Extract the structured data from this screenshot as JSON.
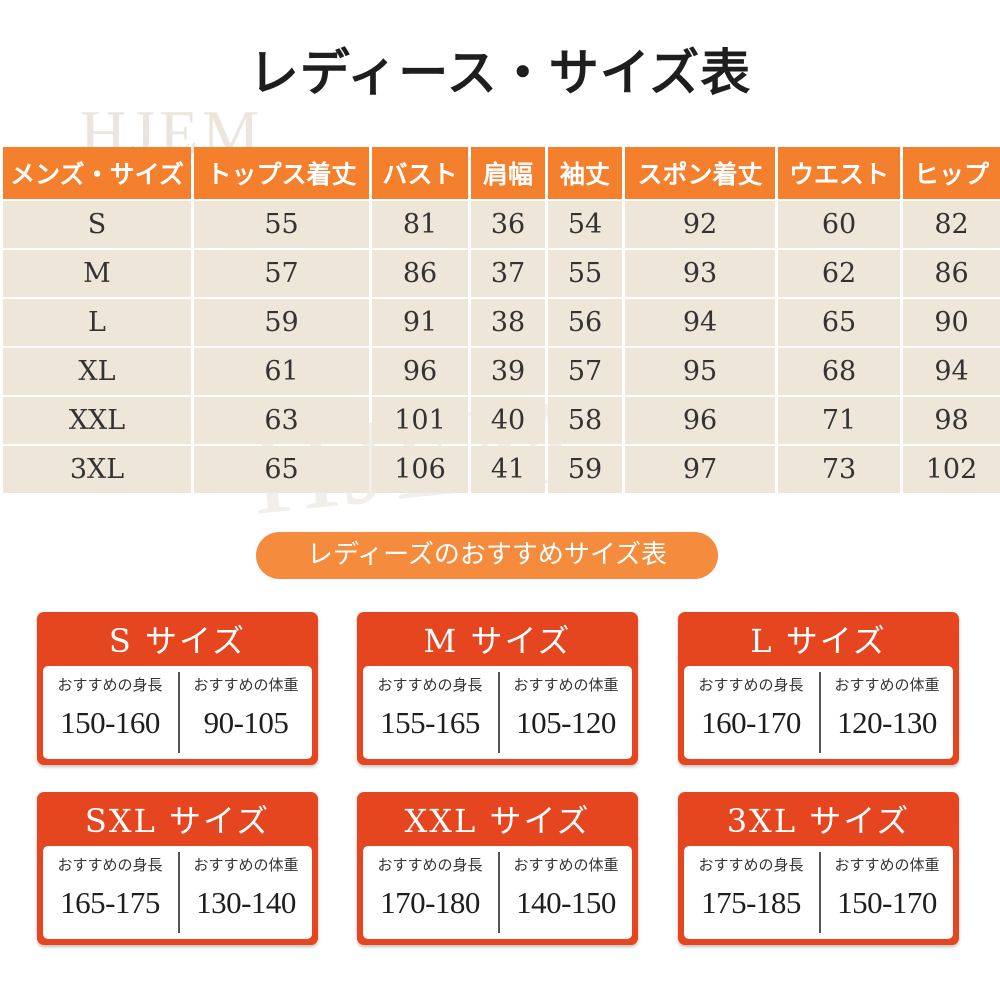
{
  "title": "レディース・サイズ表",
  "watermark": "HJEM",
  "table": {
    "headers": [
      "メンズ・サイズ",
      "トップス着丈",
      "バスト",
      "肩幅",
      "袖丈",
      "スポン着丈",
      "ウエスト",
      "ヒップ"
    ],
    "rows": [
      [
        "S",
        "55",
        "81",
        "36",
        "54",
        "92",
        "60",
        "82"
      ],
      [
        "M",
        "57",
        "86",
        "37",
        "55",
        "93",
        "62",
        "86"
      ],
      [
        "L",
        "59",
        "91",
        "38",
        "56",
        "94",
        "65",
        "90"
      ],
      [
        "XL",
        "61",
        "96",
        "39",
        "57",
        "95",
        "68",
        "94"
      ],
      [
        "XXL",
        "63",
        "101",
        "40",
        "58",
        "96",
        "71",
        "98"
      ],
      [
        "3XL",
        "65",
        "106",
        "41",
        "59",
        "97",
        "73",
        "102"
      ]
    ]
  },
  "recommend_title": "レディーズのおすすめサイズ表",
  "colors": {
    "header_orange": "#f47f2c",
    "cell_beige": "#efe6da",
    "card_red": "#e5451f",
    "pill_orange": "#f48b3d"
  },
  "cards": [
    {
      "title": "S サイズ",
      "height_label": "おすすめの身長",
      "height": "150-160",
      "weight_label": "おすすめの体重",
      "weight": "90-105"
    },
    {
      "title": "M サイズ",
      "height_label": "おすすめの身長",
      "height": "155-165",
      "weight_label": "おすすめの体重",
      "weight": "105-120"
    },
    {
      "title": "L サイズ",
      "height_label": "おすすめの身長",
      "height": "160-170",
      "weight_label": "おすすめの体重",
      "weight": "120-130"
    },
    {
      "title": "SXL サイズ",
      "height_label": "おすすめの身長",
      "height": "165-175",
      "weight_label": "おすすめの体重",
      "weight": "130-140"
    },
    {
      "title": "XXL サイズ",
      "height_label": "おすすめの身長",
      "height": "170-180",
      "weight_label": "おすすめの体重",
      "weight": "140-150"
    },
    {
      "title": "3XL サイズ",
      "height_label": "おすすめの身長",
      "height": "175-185",
      "weight_label": "おすすめの体重",
      "weight": "150-170"
    }
  ]
}
